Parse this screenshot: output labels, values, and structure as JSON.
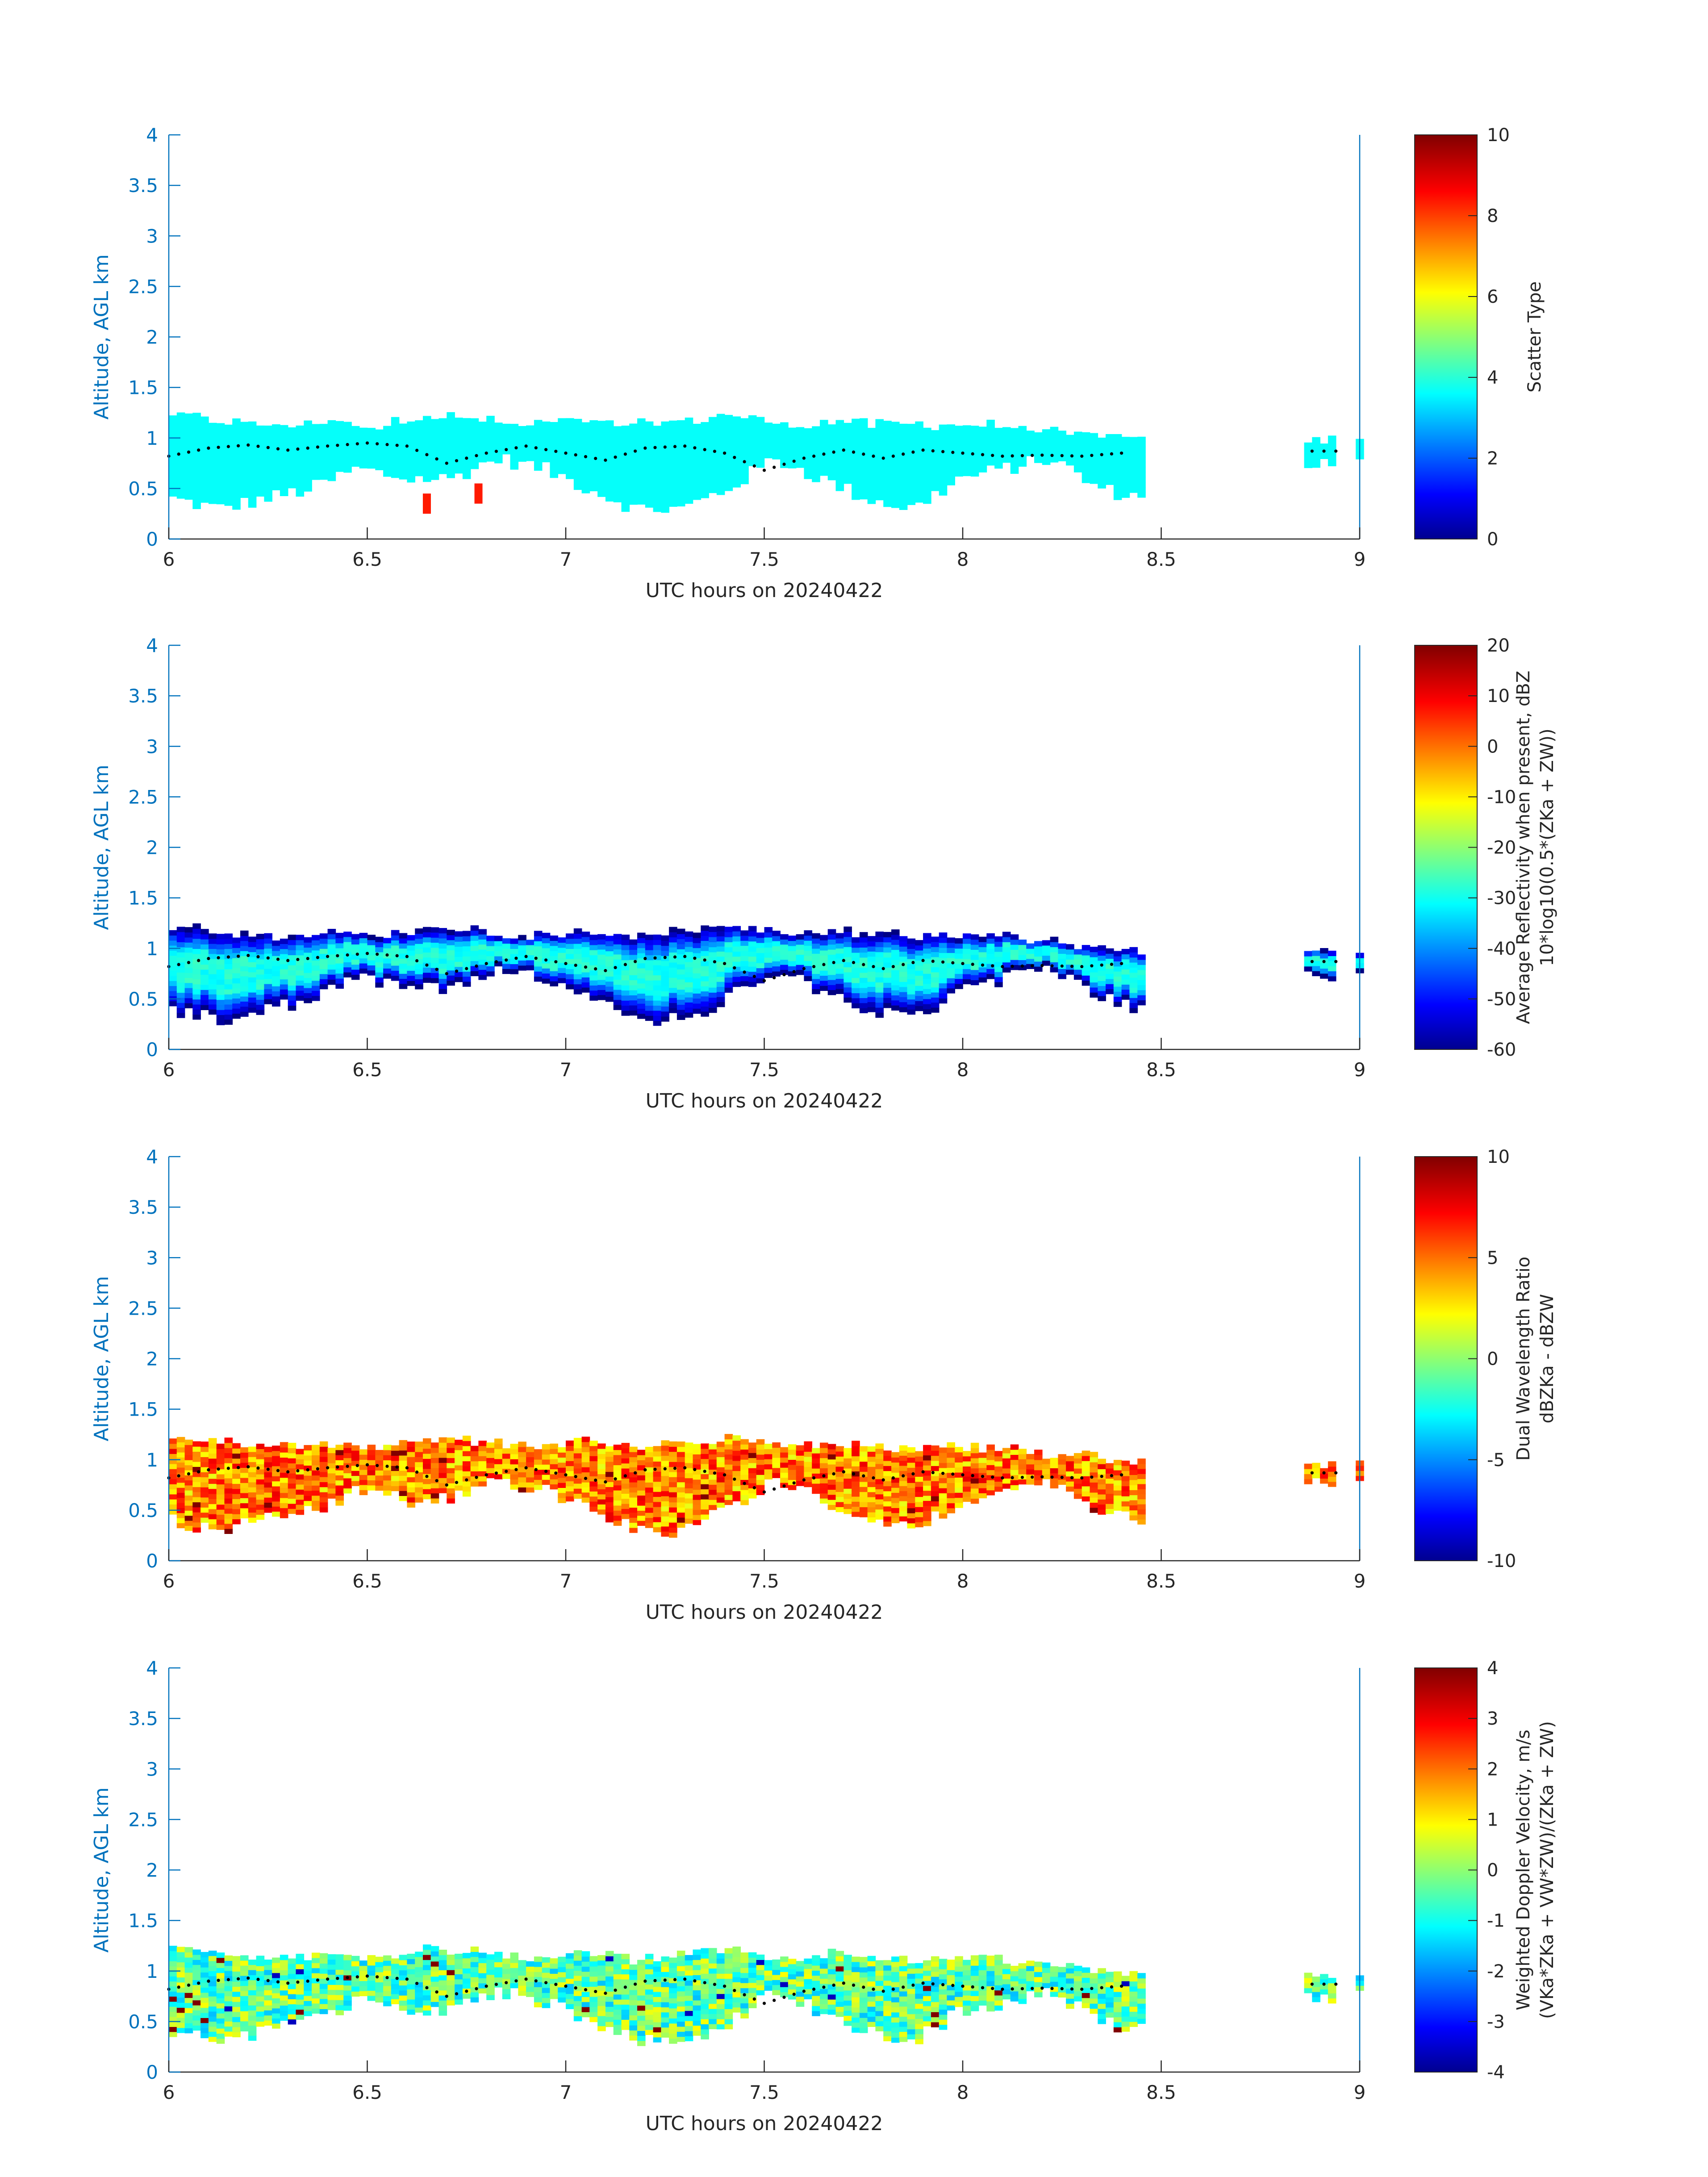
{
  "figure": {
    "date_label": "UTC hours on 20240422",
    "ylabel": "Altitude, AGL km",
    "xticks": [
      "6",
      "6.5",
      "7",
      "7.5",
      "8",
      "8.5",
      "9"
    ],
    "yticks": [
      "0",
      "0.5",
      "1",
      "1.5",
      "2",
      "2.5",
      "3",
      "3.5",
      "4"
    ],
    "axis_color": "#0072BD"
  },
  "chart_data": [
    {
      "type": "heatmap",
      "panel": 1,
      "xlabel": "UTC hours on 20240422",
      "ylabel": "Altitude, AGL km",
      "xlim": [
        6,
        9
      ],
      "ylim": [
        0,
        4
      ],
      "colorbar": {
        "label_lines": [
          "Scatter Type"
        ],
        "ticks": [
          "0",
          "2",
          "4",
          "6",
          "8",
          "10"
        ],
        "clim": [
          0,
          10
        ],
        "colormap": "jet"
      },
      "dominant_value": 3.8,
      "cloud_base_km": [
        0.4,
        0.3,
        0.4,
        0.5,
        0.7,
        0.6,
        0.6,
        0.8,
        0.7,
        0.5,
        0.3,
        0.3,
        0.5,
        0.8,
        0.6,
        0.4,
        0.3,
        0.6,
        0.7,
        0.8,
        0.5,
        0.4
      ],
      "cloud_top_km": [
        1.2,
        1.15,
        1.1,
        1.15,
        1.1,
        1.2,
        1.15,
        1.1,
        1.15,
        1.1,
        1.15,
        1.2,
        1.1,
        1.15,
        1.1,
        1.1,
        1.1,
        1.05,
        1.0,
        0.95
      ],
      "dotted_line_x": [
        6.0,
        6.1,
        6.2,
        6.3,
        6.4,
        6.5,
        6.6,
        6.7,
        6.8,
        6.9,
        7.0,
        7.1,
        7.2,
        7.3,
        7.4,
        7.5,
        7.6,
        7.7,
        7.8,
        7.9,
        8.0,
        8.1,
        8.2,
        8.3,
        8.4
      ],
      "dotted_line_y": [
        0.82,
        0.9,
        0.93,
        0.88,
        0.92,
        0.95,
        0.92,
        0.75,
        0.85,
        0.92,
        0.85,
        0.78,
        0.9,
        0.92,
        0.85,
        0.68,
        0.8,
        0.88,
        0.8,
        0.88,
        0.85,
        0.82,
        0.83,
        0.82,
        0.85
      ],
      "outliers": [
        {
          "x": 6.64,
          "y": 0.25,
          "value": 8.5
        },
        {
          "x": 6.77,
          "y": 0.35,
          "value": 8.5
        }
      ]
    },
    {
      "type": "heatmap",
      "panel": 2,
      "xlabel": "UTC hours on 20240422",
      "ylabel": "Altitude, AGL km",
      "xlim": [
        6,
        9
      ],
      "ylim": [
        0,
        4
      ],
      "colorbar": {
        "label_lines": [
          "Average Reflectivity when present, dBZ",
          "10*log10(0.5*(ZKa + ZW))"
        ],
        "ticks": [
          "-60",
          "-50",
          "-40",
          "-30",
          "-20",
          "-10",
          "0",
          "10",
          "20"
        ],
        "clim": [
          -60,
          20
        ],
        "colormap": "jet"
      },
      "value_range_in_cloud": [
        -60,
        -28
      ]
    },
    {
      "type": "heatmap",
      "panel": 3,
      "xlabel": "UTC hours on 20240422",
      "ylabel": "Altitude, AGL km",
      "xlim": [
        6,
        9
      ],
      "ylim": [
        0,
        4
      ],
      "colorbar": {
        "label_lines": [
          "Dual Wavelength Ratio",
          "dBZKa - dBZW"
        ],
        "ticks": [
          "-10",
          "-5",
          "0",
          "5",
          "10"
        ],
        "clim": [
          -10,
          10
        ],
        "colormap": "jet"
      },
      "value_range_in_cloud": [
        2,
        8
      ]
    },
    {
      "type": "heatmap",
      "panel": 4,
      "xlabel": "UTC hours on 20240422",
      "ylabel": "Altitude, AGL km",
      "xlim": [
        6,
        9
      ],
      "ylim": [
        0,
        4
      ],
      "colorbar": {
        "label_lines": [
          "Weighted Doppler Velocity, m/s",
          "(VKa*ZKa + VW*ZW)/(ZKa + ZW)"
        ],
        "ticks": [
          "-4",
          "-3",
          "-2",
          "-1",
          "0",
          "1",
          "2",
          "3",
          "4"
        ],
        "clim": [
          -4,
          4
        ],
        "colormap": "jet"
      },
      "value_range_in_cloud": [
        -1.5,
        1.0
      ]
    }
  ]
}
